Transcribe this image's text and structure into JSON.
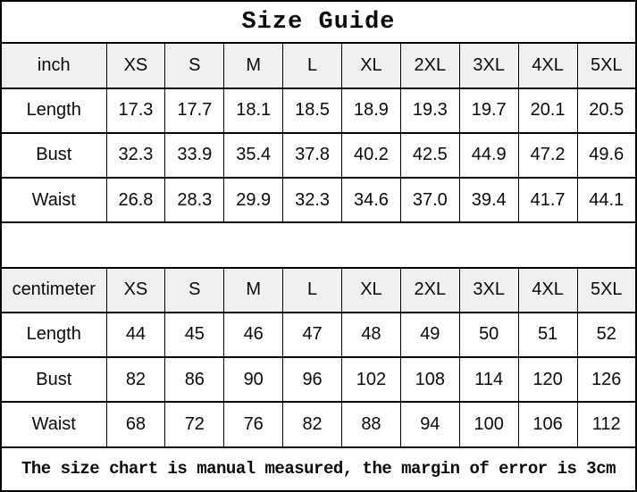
{
  "title": "Size Guide",
  "footer_note": "The size chart is manual measured, the margin of error is 3cm",
  "colors": {
    "header_row_bg": "#f0f0f0",
    "border": "#000000",
    "background": "#ffffff",
    "text": "#0a0a0a"
  },
  "inch_table": {
    "unit_label": "inch",
    "sizes": [
      "XS",
      "S",
      "M",
      "L",
      "XL",
      "2XL",
      "3XL",
      "4XL",
      "5XL"
    ],
    "rows": [
      {
        "label": "Length",
        "values": [
          "17.3",
          "17.7",
          "18.1",
          "18.5",
          "18.9",
          "19.3",
          "19.7",
          "20.1",
          "20.5"
        ]
      },
      {
        "label": "Bust",
        "values": [
          "32.3",
          "33.9",
          "35.4",
          "37.8",
          "40.2",
          "42.5",
          "44.9",
          "47.2",
          "49.6"
        ]
      },
      {
        "label": "Waist",
        "values": [
          "26.8",
          "28.3",
          "29.9",
          "32.3",
          "34.6",
          "37.0",
          "39.4",
          "41.7",
          "44.1"
        ]
      }
    ]
  },
  "cm_table": {
    "unit_label": "centimeter",
    "sizes": [
      "XS",
      "S",
      "M",
      "L",
      "XL",
      "2XL",
      "3XL",
      "4XL",
      "5XL"
    ],
    "rows": [
      {
        "label": "Length",
        "values": [
          "44",
          "45",
          "46",
          "47",
          "48",
          "49",
          "50",
          "51",
          "52"
        ]
      },
      {
        "label": "Bust",
        "values": [
          "82",
          "86",
          "90",
          "96",
          "102",
          "108",
          "114",
          "120",
          "126"
        ]
      },
      {
        "label": "Waist",
        "values": [
          "68",
          "72",
          "76",
          "82",
          "88",
          "94",
          "100",
          "106",
          "112"
        ]
      }
    ]
  },
  "chart_data": [
    {
      "type": "table",
      "title": "Size Guide",
      "unit": "inch",
      "columns": [
        "inch",
        "XS",
        "S",
        "M",
        "L",
        "XL",
        "2XL",
        "3XL",
        "4XL",
        "5XL"
      ],
      "rows": [
        [
          "Length",
          17.3,
          17.7,
          18.1,
          18.5,
          18.9,
          19.3,
          19.7,
          20.1,
          20.5
        ],
        [
          "Bust",
          32.3,
          33.9,
          35.4,
          37.8,
          40.2,
          42.5,
          44.9,
          47.2,
          49.6
        ],
        [
          "Waist",
          26.8,
          28.3,
          29.9,
          32.3,
          34.6,
          37.0,
          39.4,
          41.7,
          44.1
        ]
      ]
    },
    {
      "type": "table",
      "title": "Size Guide",
      "unit": "centimeter",
      "columns": [
        "centimeter",
        "XS",
        "S",
        "M",
        "L",
        "XL",
        "2XL",
        "3XL",
        "4XL",
        "5XL"
      ],
      "rows": [
        [
          "Length",
          44,
          45,
          46,
          47,
          48,
          49,
          50,
          51,
          52
        ],
        [
          "Bust",
          82,
          86,
          90,
          96,
          102,
          108,
          114,
          120,
          126
        ],
        [
          "Waist",
          68,
          72,
          76,
          82,
          88,
          94,
          100,
          106,
          112
        ]
      ],
      "note": "The size chart is manual measured, the margin of error is 3cm"
    }
  ]
}
